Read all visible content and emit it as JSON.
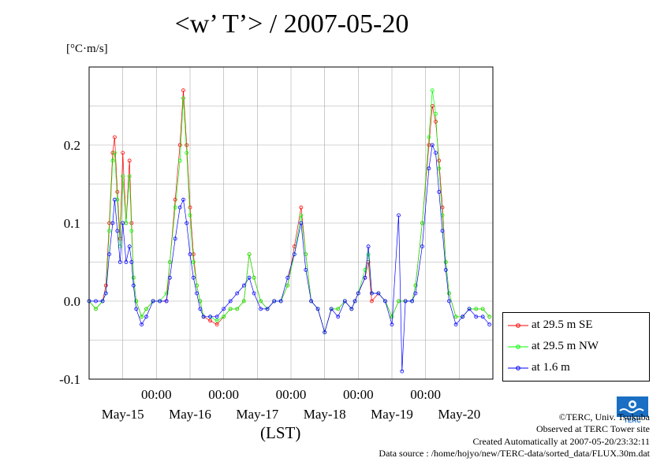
{
  "title": "<w’ T’> / 2007-05-20",
  "unit_label": "[°C·m/s]",
  "x_axis_label": "(LST)",
  "credits": {
    "copyright": "©TERC, Univ. Tsukuba",
    "site": "Observed at TERC Tower site",
    "created": "Created Automatically at 2007-05-20/23:32:11",
    "source": "Data source : /home/hojyo/new/TERC-data/sorted_data/FLUX.30m.dat"
  },
  "logo_text": "TERC",
  "colors": {
    "series1": "#ff0000",
    "series2": "#00ff00",
    "series3": "#0000ff"
  },
  "chart_data": {
    "type": "line",
    "xlabel": "(LST)",
    "ylabel": "[°C·m/s]",
    "title": "<w’ T’> / 2007-05-20",
    "xlim_days": [
      0,
      6
    ],
    "ylim": [
      -0.1,
      0.3
    ],
    "y_ticks": [
      -0.1,
      0.0,
      0.1,
      0.2
    ],
    "y_tick_labels": [
      "-0.1",
      "0.0",
      "0.1",
      "0.2"
    ],
    "x_time_ticks": [
      "00:00",
      "00:00",
      "00:00",
      "00:00",
      "00:00"
    ],
    "x_day_labels": [
      "May-15",
      "May-16",
      "May-17",
      "May-18",
      "May-19",
      "May-20"
    ],
    "grid": true,
    "legend_position": "right",
    "series": [
      {
        "name": "at 29.5 m SE",
        "color": "#ff0000",
        "points": [
          [
            0.0,
            0.0
          ],
          [
            0.1,
            -0.01
          ],
          [
            0.2,
            0.0
          ],
          [
            0.25,
            0.02
          ],
          [
            0.3,
            0.1
          ],
          [
            0.35,
            0.19
          ],
          [
            0.38,
            0.21
          ],
          [
            0.42,
            0.14
          ],
          [
            0.46,
            0.08
          ],
          [
            0.5,
            0.19
          ],
          [
            0.55,
            0.1
          ],
          [
            0.6,
            0.18
          ],
          [
            0.63,
            0.1
          ],
          [
            0.66,
            0.03
          ],
          [
            0.7,
            0.0
          ],
          [
            0.78,
            -0.02
          ],
          [
            0.85,
            -0.01
          ],
          [
            0.95,
            0.0
          ],
          [
            1.05,
            0.0
          ],
          [
            1.15,
            0.0
          ],
          [
            1.2,
            0.05
          ],
          [
            1.28,
            0.13
          ],
          [
            1.35,
            0.2
          ],
          [
            1.4,
            0.27
          ],
          [
            1.45,
            0.2
          ],
          [
            1.5,
            0.12
          ],
          [
            1.55,
            0.06
          ],
          [
            1.6,
            0.02
          ],
          [
            1.65,
            0.0
          ],
          [
            1.7,
            -0.02
          ],
          [
            1.8,
            -0.025
          ],
          [
            1.9,
            -0.03
          ],
          [
            2.0,
            -0.02
          ],
          [
            2.1,
            -0.01
          ],
          [
            2.2,
            -0.01
          ],
          [
            2.3,
            0.0
          ],
          [
            2.38,
            0.06
          ],
          [
            2.45,
            0.03
          ],
          [
            2.55,
            0.0
          ],
          [
            2.65,
            -0.01
          ],
          [
            2.75,
            0.0
          ],
          [
            2.85,
            0.0
          ],
          [
            2.95,
            0.02
          ],
          [
            3.05,
            0.07
          ],
          [
            3.15,
            0.12
          ],
          [
            3.22,
            0.06
          ],
          [
            3.3,
            0.0
          ],
          [
            3.4,
            -0.01
          ],
          [
            3.5,
            -0.04
          ],
          [
            3.6,
            -0.01
          ],
          [
            3.7,
            -0.01
          ],
          [
            3.8,
            0.0
          ],
          [
            3.9,
            -0.01
          ],
          [
            3.95,
            0.0
          ],
          [
            4.0,
            0.01
          ],
          [
            4.1,
            0.03
          ],
          [
            4.15,
            0.05
          ],
          [
            4.2,
            0.0
          ],
          [
            4.3,
            0.01
          ],
          [
            4.4,
            0.0
          ],
          [
            4.5,
            -0.02
          ],
          [
            4.6,
            0.0
          ],
          [
            4.7,
            0.0
          ],
          [
            4.8,
            0.0
          ],
          [
            4.85,
            0.02
          ],
          [
            4.95,
            0.1
          ],
          [
            5.05,
            0.2
          ],
          [
            5.1,
            0.25
          ],
          [
            5.15,
            0.23
          ],
          [
            5.2,
            0.18
          ],
          [
            5.25,
            0.12
          ],
          [
            5.3,
            0.05
          ],
          [
            5.35,
            0.01
          ],
          [
            5.45,
            -0.02
          ],
          [
            5.55,
            -0.02
          ],
          [
            5.65,
            -0.01
          ],
          [
            5.75,
            -0.01
          ],
          [
            5.85,
            -0.01
          ],
          [
            5.95,
            -0.02
          ]
        ]
      },
      {
        "name": "at 29.5 m NW",
        "color": "#00ff00",
        "points": [
          [
            0.0,
            0.0
          ],
          [
            0.1,
            -0.01
          ],
          [
            0.2,
            0.0
          ],
          [
            0.25,
            0.01
          ],
          [
            0.3,
            0.09
          ],
          [
            0.35,
            0.18
          ],
          [
            0.38,
            0.19
          ],
          [
            0.42,
            0.13
          ],
          [
            0.46,
            0.07
          ],
          [
            0.5,
            0.16
          ],
          [
            0.55,
            0.1
          ],
          [
            0.6,
            0.16
          ],
          [
            0.63,
            0.09
          ],
          [
            0.66,
            0.03
          ],
          [
            0.7,
            0.0
          ],
          [
            0.78,
            -0.02
          ],
          [
            0.85,
            -0.01
          ],
          [
            0.95,
            0.0
          ],
          [
            1.05,
            0.0
          ],
          [
            1.15,
            0.01
          ],
          [
            1.2,
            0.05
          ],
          [
            1.28,
            0.12
          ],
          [
            1.35,
            0.18
          ],
          [
            1.4,
            0.26
          ],
          [
            1.45,
            0.19
          ],
          [
            1.5,
            0.11
          ],
          [
            1.55,
            0.05
          ],
          [
            1.6,
            0.02
          ],
          [
            1.65,
            0.0
          ],
          [
            1.7,
            -0.02
          ],
          [
            1.8,
            -0.02
          ],
          [
            1.9,
            -0.025
          ],
          [
            2.0,
            -0.02
          ],
          [
            2.1,
            -0.01
          ],
          [
            2.2,
            -0.01
          ],
          [
            2.3,
            0.0
          ],
          [
            2.38,
            0.06
          ],
          [
            2.45,
            0.03
          ],
          [
            2.55,
            0.0
          ],
          [
            2.65,
            -0.01
          ],
          [
            2.75,
            0.0
          ],
          [
            2.85,
            0.0
          ],
          [
            2.95,
            0.02
          ],
          [
            3.05,
            0.06
          ],
          [
            3.15,
            0.11
          ],
          [
            3.22,
            0.06
          ],
          [
            3.3,
            0.0
          ],
          [
            3.4,
            -0.01
          ],
          [
            3.5,
            -0.04
          ],
          [
            3.6,
            -0.01
          ],
          [
            3.7,
            -0.01
          ],
          [
            3.8,
            0.0
          ],
          [
            3.9,
            -0.01
          ],
          [
            3.95,
            0.0
          ],
          [
            4.0,
            0.01
          ],
          [
            4.1,
            0.04
          ],
          [
            4.15,
            0.06
          ],
          [
            4.2,
            0.01
          ],
          [
            4.3,
            0.01
          ],
          [
            4.4,
            0.0
          ],
          [
            4.5,
            -0.02
          ],
          [
            4.6,
            0.0
          ],
          [
            4.7,
            0.0
          ],
          [
            4.8,
            0.0
          ],
          [
            4.85,
            0.02
          ],
          [
            4.95,
            0.1
          ],
          [
            5.05,
            0.21
          ],
          [
            5.1,
            0.27
          ],
          [
            5.15,
            0.24
          ],
          [
            5.2,
            0.17
          ],
          [
            5.25,
            0.11
          ],
          [
            5.3,
            0.05
          ],
          [
            5.35,
            0.01
          ],
          [
            5.45,
            -0.02
          ],
          [
            5.55,
            -0.02
          ],
          [
            5.65,
            -0.01
          ],
          [
            5.75,
            -0.01
          ],
          [
            5.85,
            -0.01
          ],
          [
            5.95,
            -0.02
          ]
        ]
      },
      {
        "name": "at 1.6 m",
        "color": "#0000ff",
        "points": [
          [
            0.0,
            0.0
          ],
          [
            0.1,
            0.0
          ],
          [
            0.2,
            0.0
          ],
          [
            0.25,
            0.01
          ],
          [
            0.3,
            0.06
          ],
          [
            0.35,
            0.1
          ],
          [
            0.38,
            0.13
          ],
          [
            0.42,
            0.09
          ],
          [
            0.46,
            0.05
          ],
          [
            0.5,
            0.1
          ],
          [
            0.55,
            0.05
          ],
          [
            0.6,
            0.07
          ],
          [
            0.63,
            0.05
          ],
          [
            0.66,
            0.02
          ],
          [
            0.7,
            -0.01
          ],
          [
            0.78,
            -0.03
          ],
          [
            0.85,
            -0.02
          ],
          [
            0.95,
            0.0
          ],
          [
            1.05,
            0.0
          ],
          [
            1.15,
            0.0
          ],
          [
            1.2,
            0.03
          ],
          [
            1.28,
            0.08
          ],
          [
            1.35,
            0.12
          ],
          [
            1.4,
            0.13
          ],
          [
            1.45,
            0.1
          ],
          [
            1.5,
            0.06
          ],
          [
            1.55,
            0.03
          ],
          [
            1.6,
            0.01
          ],
          [
            1.65,
            -0.01
          ],
          [
            1.7,
            -0.02
          ],
          [
            1.8,
            -0.02
          ],
          [
            1.9,
            -0.02
          ],
          [
            2.0,
            -0.01
          ],
          [
            2.1,
            0.0
          ],
          [
            2.2,
            0.01
          ],
          [
            2.3,
            0.02
          ],
          [
            2.38,
            0.03
          ],
          [
            2.45,
            0.01
          ],
          [
            2.55,
            -0.01
          ],
          [
            2.65,
            -0.01
          ],
          [
            2.75,
            0.0
          ],
          [
            2.85,
            0.0
          ],
          [
            2.95,
            0.03
          ],
          [
            3.05,
            0.06
          ],
          [
            3.15,
            0.1
          ],
          [
            3.22,
            0.04
          ],
          [
            3.3,
            0.0
          ],
          [
            3.4,
            -0.01
          ],
          [
            3.5,
            -0.04
          ],
          [
            3.6,
            -0.01
          ],
          [
            3.7,
            -0.02
          ],
          [
            3.8,
            0.0
          ],
          [
            3.9,
            -0.01
          ],
          [
            3.95,
            0.0
          ],
          [
            4.0,
            0.01
          ],
          [
            4.1,
            0.03
          ],
          [
            4.15,
            0.07
          ],
          [
            4.2,
            0.01
          ],
          [
            4.3,
            0.01
          ],
          [
            4.4,
            0.0
          ],
          [
            4.5,
            -0.03
          ],
          [
            4.6,
            0.11
          ],
          [
            4.65,
            -0.09
          ],
          [
            4.7,
            0.0
          ],
          [
            4.8,
            0.0
          ],
          [
            4.85,
            0.01
          ],
          [
            4.95,
            0.07
          ],
          [
            5.05,
            0.17
          ],
          [
            5.1,
            0.2
          ],
          [
            5.15,
            0.19
          ],
          [
            5.2,
            0.14
          ],
          [
            5.25,
            0.09
          ],
          [
            5.3,
            0.04
          ],
          [
            5.35,
            0.0
          ],
          [
            5.45,
            -0.03
          ],
          [
            5.55,
            -0.02
          ],
          [
            5.65,
            -0.01
          ],
          [
            5.75,
            -0.02
          ],
          [
            5.85,
            -0.02
          ],
          [
            5.95,
            -0.03
          ]
        ]
      }
    ]
  }
}
